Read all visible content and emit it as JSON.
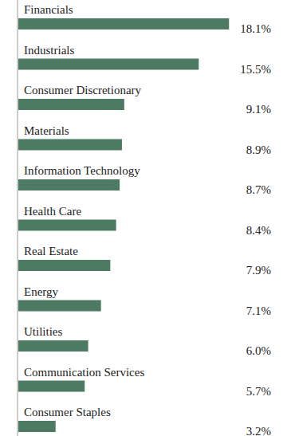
{
  "chart_data": {
    "type": "bar",
    "orientation": "horizontal",
    "categories": [
      "Financials",
      "Industrials",
      "Consumer Discretionary",
      "Materials",
      "Information Technology",
      "Health Care",
      "Real Estate",
      "Energy",
      "Utilities",
      "Communication Services",
      "Consumer Staples"
    ],
    "values": [
      18.1,
      15.5,
      9.1,
      8.9,
      8.7,
      8.4,
      7.9,
      7.1,
      6.0,
      5.7,
      3.2
    ],
    "value_labels": [
      "18.1%",
      "15.5%",
      "9.1%",
      "8.9%",
      "8.7%",
      "8.4%",
      "7.9%",
      "7.1%",
      "6.0%",
      "5.7%",
      "3.2%"
    ],
    "color": "#4d7a62",
    "xlim": [
      0,
      20
    ],
    "data_labels": true,
    "tick_labels": false,
    "grid": false
  }
}
